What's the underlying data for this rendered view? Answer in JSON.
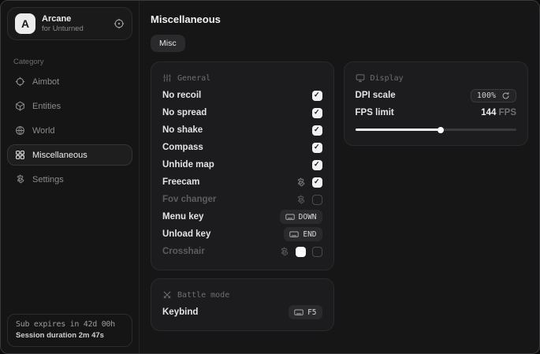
{
  "app": {
    "name": "Arcane",
    "subtitle": "for Unturned"
  },
  "colors": {
    "accent": "#f2f2f2",
    "window_bg": "#161617",
    "card_bg": "#1c1c1e",
    "border": "#2a2a2c",
    "crosshair_swatch": "#ffffff"
  },
  "sidebar": {
    "category_label": "Category",
    "items": [
      {
        "label": "Aimbot",
        "icon": "crosshair-icon",
        "selected": false
      },
      {
        "label": "Entities",
        "icon": "entities-icon",
        "selected": false
      },
      {
        "label": "World",
        "icon": "globe-icon",
        "selected": false
      },
      {
        "label": "Miscellaneous",
        "icon": "grid-icon",
        "selected": true
      },
      {
        "label": "Settings",
        "icon": "gear-icon",
        "selected": false
      }
    ],
    "status": {
      "sub_expires": "Sub expires in 42d 00h",
      "session_duration": "Session duration 2m 47s"
    }
  },
  "main": {
    "title": "Miscellaneous",
    "tabs": [
      {
        "label": "Misc",
        "active": true
      }
    ],
    "sections": {
      "general": {
        "title": "General",
        "rows": [
          {
            "label": "No recoil",
            "type": "checkbox",
            "checked": true,
            "disabled": false
          },
          {
            "label": "No spread",
            "type": "checkbox",
            "checked": true,
            "disabled": false
          },
          {
            "label": "No shake",
            "type": "checkbox",
            "checked": true,
            "disabled": false
          },
          {
            "label": "Compass",
            "type": "checkbox",
            "checked": true,
            "disabled": false
          },
          {
            "label": "Unhide map",
            "type": "checkbox",
            "checked": true,
            "disabled": false
          },
          {
            "label": "Freecam",
            "type": "checkbox-gear",
            "checked": true,
            "disabled": false
          },
          {
            "label": "Fov changer",
            "type": "checkbox-gear",
            "checked": false,
            "disabled": true
          },
          {
            "label": "Menu key",
            "type": "keybind",
            "key": "DOWN"
          },
          {
            "label": "Unload key",
            "type": "keybind",
            "key": "END"
          },
          {
            "label": "Crosshair",
            "type": "color-checkbox-gear",
            "checked": false,
            "disabled": true,
            "color": "#ffffff"
          }
        ]
      },
      "display": {
        "title": "Display",
        "dpi": {
          "label": "DPI scale",
          "value": "100%"
        },
        "fps": {
          "label": "FPS limit",
          "value": "144",
          "unit": "FPS",
          "slider_percent": 53
        }
      },
      "battle": {
        "title": "Battle mode",
        "rows": [
          {
            "label": "Keybind",
            "type": "keybind",
            "key": "F5"
          }
        ]
      }
    }
  }
}
